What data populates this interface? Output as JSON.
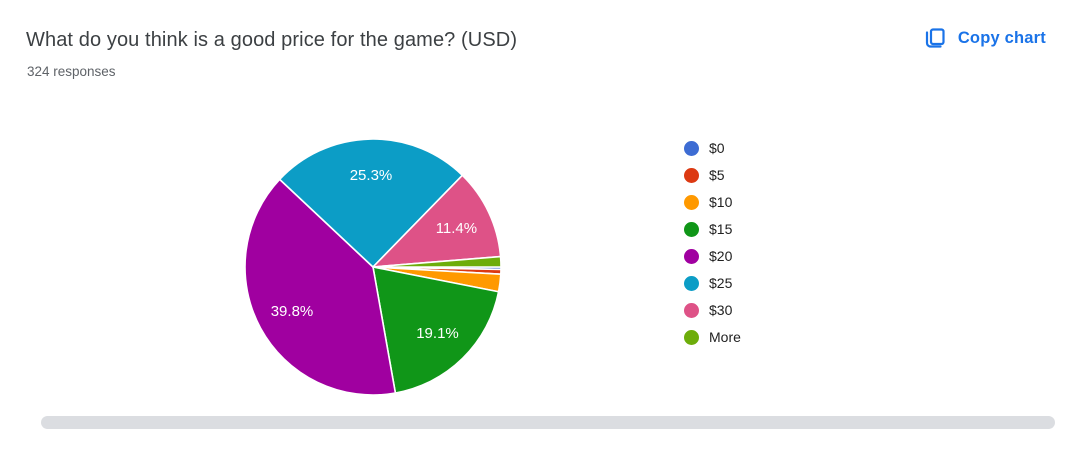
{
  "header": {
    "title": "What do you think is a good price for the game? (USD)",
    "responses": "324 responses",
    "copy_button_label": "Copy chart",
    "accent_color": "#1a73e8"
  },
  "chart_data": {
    "type": "pie",
    "title": "What do you think is a good price for the game? (USD)",
    "responses_count": 324,
    "start_angle_deg": 90,
    "direction": "clockwise",
    "legend_position": "right",
    "grid": false,
    "slices": [
      {
        "label": "$0",
        "pct": 0.3,
        "color": "#3D6CD3",
        "display_label": ""
      },
      {
        "label": "$5",
        "pct": 0.6,
        "color": "#DC3912",
        "display_label": ""
      },
      {
        "label": "$10",
        "pct": 2.2,
        "color": "#FF9900",
        "display_label": ""
      },
      {
        "label": "$15",
        "pct": 19.1,
        "color": "#109618",
        "display_label": "19.1%"
      },
      {
        "label": "$20",
        "pct": 39.8,
        "color": "#A000A0",
        "display_label": "39.8%"
      },
      {
        "label": "$25",
        "pct": 25.3,
        "color": "#0C9DC6",
        "display_label": "25.3%"
      },
      {
        "label": "$30",
        "pct": 11.4,
        "color": "#DE5287",
        "display_label": "11.4%"
      },
      {
        "label": "More",
        "pct": 1.3,
        "color": "#6DAD0A",
        "display_label": ""
      }
    ]
  }
}
